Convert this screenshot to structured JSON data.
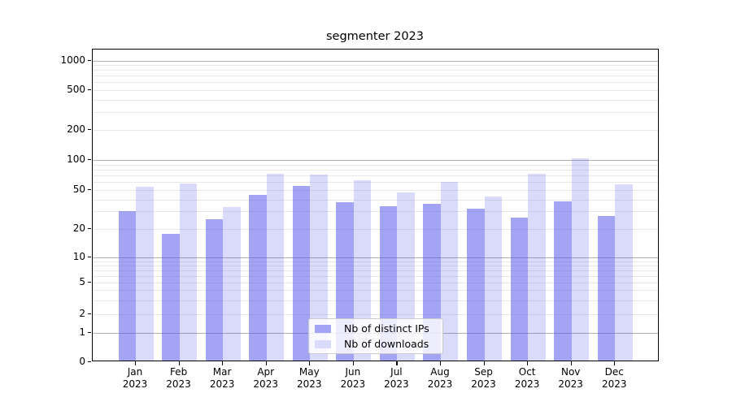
{
  "chart_data": {
    "type": "bar",
    "title": "segmenter 2023",
    "categories": [
      "Jan 2023",
      "Feb 2023",
      "Mar 2023",
      "Apr 2023",
      "May 2023",
      "Jun 2023",
      "Jul 2023",
      "Aug 2023",
      "Sep 2023",
      "Oct 2023",
      "Nov 2023",
      "Dec 2023"
    ],
    "series": [
      {
        "name": "Nb of distinct IPs",
        "color": "#a4a4f4",
        "fill": "rgba(80,80,235,0.52)",
        "values": [
          29,
          17,
          24,
          43,
          53,
          36,
          33,
          35,
          31,
          25,
          37,
          26
        ]
      },
      {
        "name": "Nb of downloads",
        "color": "#dadafb",
        "fill": "rgba(80,80,235,0.21)",
        "values": [
          52,
          56,
          32,
          70,
          69,
          60,
          45,
          58,
          41,
          70,
          100,
          55
        ]
      }
    ],
    "yscale": "symlog",
    "yticks": [
      0,
      1,
      2,
      5,
      10,
      20,
      50,
      100,
      200,
      500,
      1000
    ],
    "ylim": [
      0,
      1300
    ],
    "xlabel": "",
    "ylabel": "",
    "grid": true,
    "legend_position": "lower center",
    "colors": {
      "grid_major": "#b0b0b0",
      "grid_minor": "#e8e8e8",
      "axis": "#000000",
      "text": "#000000"
    }
  }
}
